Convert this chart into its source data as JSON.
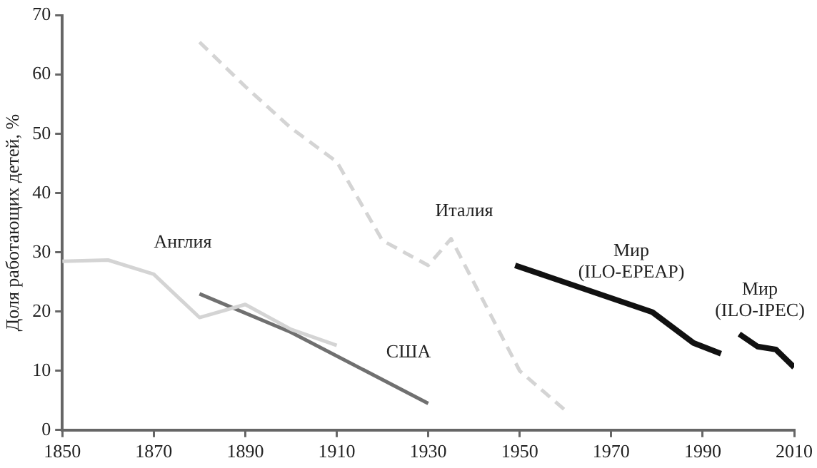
{
  "chart_data": {
    "type": "line",
    "ylabel": "Доля работающих детей, %",
    "xlim": [
      1850,
      2010
    ],
    "xticks": [
      1850,
      1870,
      1890,
      1910,
      1930,
      1950,
      1970,
      1990,
      2010
    ],
    "ylim": [
      0,
      70
    ],
    "yticks": [
      0,
      10,
      20,
      30,
      40,
      50,
      60,
      70
    ],
    "grid": false,
    "legend": false,
    "marker": "none",
    "series": [
      {
        "name": "Англия",
        "color": "#d4d4d4",
        "line_style": "solid",
        "x": [
          1850,
          1860,
          1870,
          1880,
          1890,
          1900,
          1910
        ],
        "values": [
          28.5,
          28.7,
          26.3,
          19,
          21.2,
          17,
          14.3
        ]
      },
      {
        "name": "Италия",
        "color": "#d4d4d4",
        "line_style": "dashed",
        "x": [
          1880,
          1890,
          1900,
          1910,
          1920,
          1930,
          1935,
          1950,
          1960
        ],
        "values": [
          65.5,
          58,
          51,
          45.3,
          32,
          27.8,
          32.3,
          10,
          3.3
        ]
      },
      {
        "name": "США",
        "color": "#707070",
        "line_style": "solid",
        "x": [
          1880,
          1900,
          1930
        ],
        "values": [
          23,
          16.5,
          4.5
        ]
      },
      {
        "name": "Мир (ILO-EPEAP)",
        "color": "#111111",
        "line_style": "solid",
        "x": [
          1949,
          1979,
          1988,
          1994
        ],
        "values": [
          27.8,
          19.9,
          14.7,
          12.9
        ]
      },
      {
        "name": "Мир (ILO-IPEC)",
        "color": "#111111",
        "line_style": "solid",
        "x": [
          1998,
          2002,
          2006,
          2010
        ],
        "values": [
          16.2,
          14.1,
          13.6,
          10.6
        ]
      }
    ]
  }
}
